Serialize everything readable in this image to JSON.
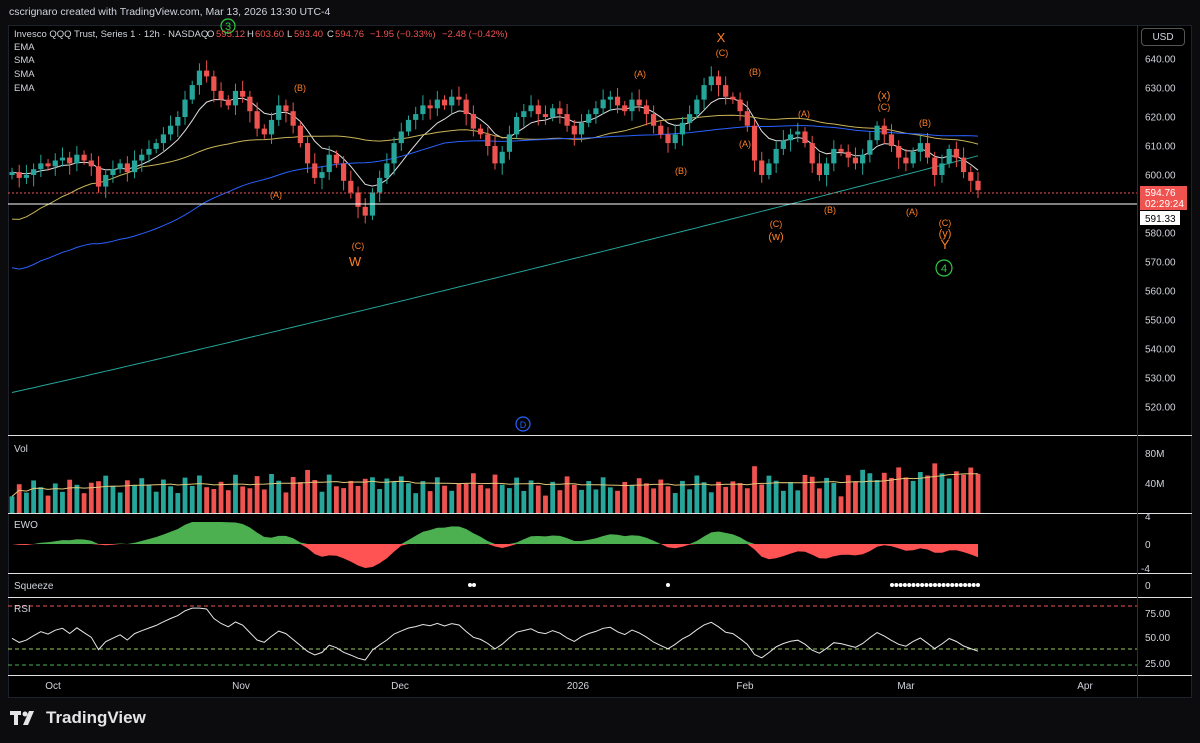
{
  "header": {
    "creator_line": "cscrignaro created with TradingView.com, Mar 13, 2026 13:30 UTC-4",
    "symbol_line": "Invesco QQQ Trust, Series 1 · 12h · NASDAQ",
    "ohlc": {
      "o_label": "O",
      "o": "595.12",
      "h_label": "H",
      "h": "603.60",
      "l_label": "L",
      "l": "593.40",
      "c_label": "C",
      "c": "594.76",
      "chg": "−1.95 (−0.33%)",
      "chg2": "−2.48 (−0.42%)"
    },
    "indicators": [
      "EMA",
      "SMA",
      "SMA",
      "EMA"
    ],
    "currency": "USD"
  },
  "price_axis": {
    "ticks": [
      "640.00",
      "630.00",
      "620.00",
      "610.00",
      "600.00",
      "590.00",
      "580.00",
      "570.00",
      "560.00",
      "550.00",
      "540.00",
      "530.00",
      "520.00"
    ],
    "last_price": "594.76",
    "countdown": "02:29:24",
    "line_price": "591.33"
  },
  "time_axis": [
    "Oct",
    "Nov",
    "Dec",
    "2026",
    "Feb",
    "Mar",
    "Apr"
  ],
  "panes": {
    "volume": {
      "label": "Vol",
      "ticks": [
        "80M",
        "40M"
      ]
    },
    "ewo": {
      "label": "EWO",
      "ticks": [
        "4",
        "0",
        "-4"
      ]
    },
    "squeeze": {
      "label": "Squeeze",
      "ticks": [
        "0"
      ]
    },
    "rsi": {
      "label": "RSI",
      "ticks": [
        "75.00",
        "50.00",
        "25.00"
      ]
    }
  },
  "annotations": {
    "wave3": "3",
    "wave4": "4",
    "dividend": "D",
    "labels_orange": [
      "(B)",
      "(A)",
      "(C)",
      "W",
      "(A)",
      "X",
      "(C)",
      "(B)",
      "(A)",
      "(B)",
      "(A)",
      "(C)",
      "(w)",
      "(B)",
      "(x)",
      "(C)",
      "(B)",
      "(A)",
      "(C)",
      "(y)",
      "Y"
    ]
  },
  "brand": {
    "name": "TradingView"
  },
  "colors": {
    "up": "#26a69a",
    "down": "#ef5350",
    "ema_fast": "#e0e0e0",
    "sma_mid": "#c9b458",
    "sma_slow": "#2962ff",
    "ema_slow": "#26a69a",
    "wave": "#ff7f27",
    "green_label": "#2ecc40"
  },
  "chart_data": [
    {
      "type": "candlestick",
      "title": "Invesco QQQ Trust, Series 1 · 12h · NASDAQ",
      "ylim": [
        512,
        646
      ],
      "x_ticks": [
        "Oct",
        "Nov",
        "Dec",
        "2026",
        "Feb",
        "Mar",
        "Apr"
      ],
      "y_ticks": [
        640,
        630,
        620,
        610,
        600,
        590,
        580,
        570,
        560,
        550,
        540,
        530,
        520
      ],
      "closes": [
        601,
        599,
        600,
        602,
        604,
        603,
        605,
        606,
        604,
        607,
        605,
        603,
        596,
        600,
        602,
        604,
        601,
        605,
        607,
        609,
        611,
        614,
        617,
        620,
        626,
        631,
        636,
        634,
        629,
        626,
        624,
        629,
        627,
        622,
        616,
        614,
        619,
        624,
        622,
        617,
        611,
        604,
        599,
        601,
        607,
        604,
        598,
        594,
        589,
        586,
        594,
        599,
        604,
        611,
        615,
        619,
        621,
        624,
        623,
        626,
        624,
        627,
        626,
        621,
        616,
        614,
        610,
        604,
        608,
        614,
        620,
        622,
        624,
        621,
        620,
        623,
        621,
        617,
        614,
        618,
        621,
        623,
        626,
        627,
        624,
        622,
        626,
        624,
        621,
        617,
        614,
        611,
        614,
        618,
        621,
        626,
        631,
        634,
        631,
        627,
        626,
        622,
        617,
        605,
        600,
        604,
        609,
        612,
        614,
        615,
        611,
        604,
        600,
        604,
        609,
        608,
        606,
        604,
        607,
        612,
        617,
        614,
        610,
        606,
        604,
        608,
        611,
        606,
        600,
        604,
        609,
        606,
        601,
        598,
        594.76
      ],
      "lines": [
        {
          "name": "EMA",
          "color": "#e0e0e0"
        },
        {
          "name": "SMA",
          "color": "#c9b458"
        },
        {
          "name": "SMA",
          "color": "#2962ff"
        },
        {
          "name": "EMA",
          "color": "#26a69a"
        }
      ],
      "horizontal_line": 591.33,
      "last_price": 594.76
    },
    {
      "type": "bar",
      "title": "Vol",
      "y_ticks": [
        "80M",
        "40M"
      ]
    },
    {
      "type": "area",
      "title": "EWO",
      "y_ticks": [
        4,
        0,
        -4
      ]
    },
    {
      "type": "line",
      "title": "RSI",
      "y_ticks": [
        75,
        50,
        25
      ],
      "levels": [
        80,
        40,
        20
      ]
    }
  ]
}
